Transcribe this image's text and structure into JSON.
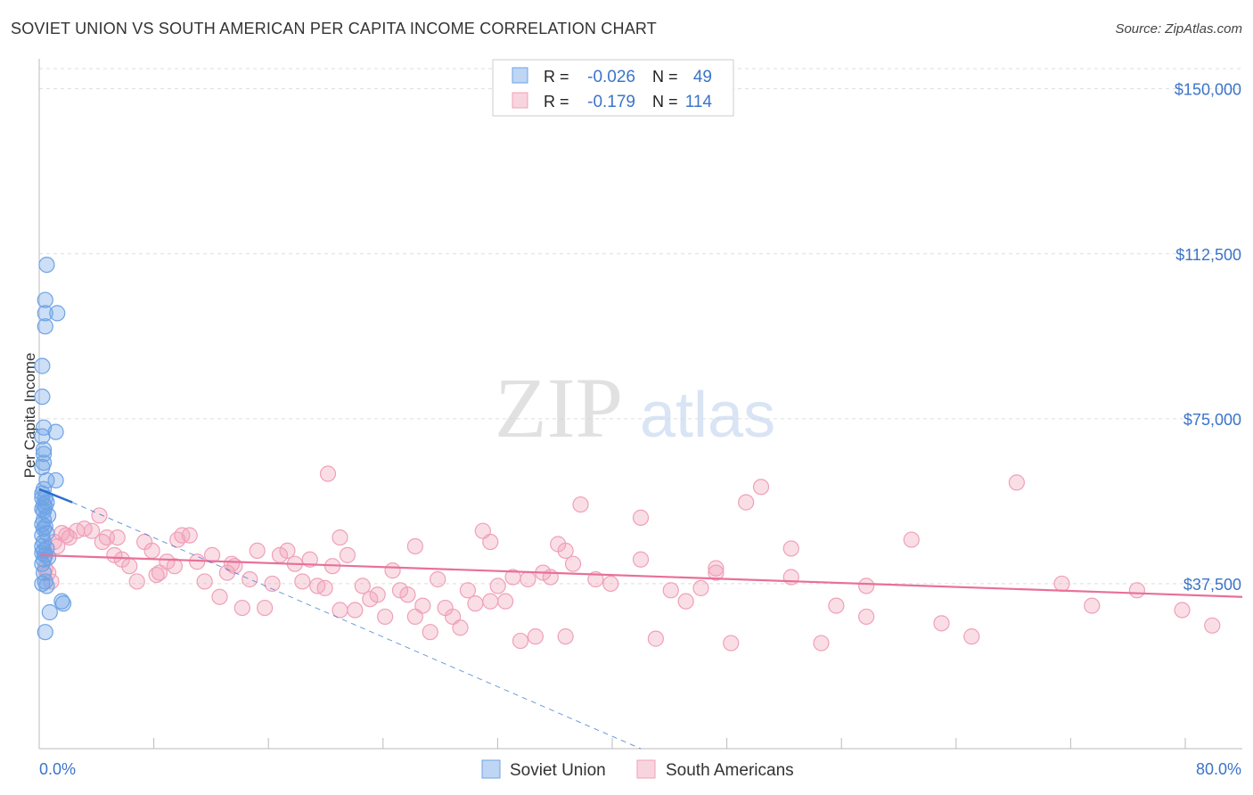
{
  "chart_data": {
    "type": "scatter",
    "title": "SOVIET UNION VS SOUTH AMERICAN PER CAPITA INCOME CORRELATION CHART",
    "source": "Source: ZipAtlas.com",
    "ylabel": "Per Capita Income",
    "xlim": [
      0,
      80
    ],
    "ylim": [
      0,
      155000
    ],
    "x_tick_labels": [
      "0.0%",
      "80.0%"
    ],
    "y_ticks": [
      37500,
      75000,
      112500,
      150000
    ],
    "y_tick_labels": [
      "$37,500",
      "$75,000",
      "$112,500",
      "$150,000"
    ],
    "watermark": "ZIPatlas",
    "colors": {
      "soviet": "#6ea3e6",
      "south": "#f0a0b8",
      "soviet_line": "#2a6fd0",
      "south_line": "#e8709a",
      "axis_text": "#3b74c9"
    },
    "legend": [
      {
        "r_label": "R =",
        "r_value": "-0.026",
        "n_label": "N =",
        "n_value": "49"
      },
      {
        "r_label": "R =",
        "r_value": "-0.179",
        "n_label": "N =",
        "n_value": "114"
      }
    ],
    "series": [
      {
        "name": "Soviet Union",
        "trend": {
          "x": [
            0.0,
            2.2
          ],
          "y": [
            59000,
            56000
          ]
        },
        "trend_ext": {
          "x": [
            2.2,
            40.0
          ],
          "y": [
            56000,
            0
          ]
        },
        "points": [
          [
            0.5,
            110000
          ],
          [
            0.4,
            102000
          ],
          [
            1.2,
            99000
          ],
          [
            0.4,
            99000
          ],
          [
            0.4,
            96000
          ],
          [
            0.2,
            87000
          ],
          [
            0.2,
            80000
          ],
          [
            0.3,
            73000
          ],
          [
            1.1,
            72000
          ],
          [
            0.2,
            71000
          ],
          [
            0.3,
            68000
          ],
          [
            0.3,
            67000
          ],
          [
            0.3,
            65000
          ],
          [
            0.2,
            64000
          ],
          [
            1.1,
            61000
          ],
          [
            0.5,
            61000
          ],
          [
            0.3,
            59000
          ],
          [
            0.2,
            58000
          ],
          [
            0.4,
            57000
          ],
          [
            0.2,
            57000
          ],
          [
            0.5,
            56000
          ],
          [
            0.3,
            55500
          ],
          [
            0.4,
            55000
          ],
          [
            0.2,
            54500
          ],
          [
            0.3,
            54000
          ],
          [
            0.6,
            53000
          ],
          [
            0.3,
            52000
          ],
          [
            0.2,
            51000
          ],
          [
            0.4,
            50500
          ],
          [
            0.3,
            50000
          ],
          [
            0.5,
            49000
          ],
          [
            0.2,
            48500
          ],
          [
            0.3,
            47000
          ],
          [
            0.2,
            46000
          ],
          [
            0.5,
            45500
          ],
          [
            0.3,
            45000
          ],
          [
            0.2,
            44500
          ],
          [
            0.4,
            44000
          ],
          [
            0.6,
            43500
          ],
          [
            0.3,
            43000
          ],
          [
            0.2,
            42000
          ],
          [
            0.3,
            40000
          ],
          [
            0.4,
            38000
          ],
          [
            0.2,
            37500
          ],
          [
            0.5,
            37000
          ],
          [
            1.5,
            33500
          ],
          [
            1.6,
            33000
          ],
          [
            0.7,
            31000
          ],
          [
            0.4,
            26500
          ]
        ]
      },
      {
        "name": "South Americans",
        "trend": {
          "x": [
            0.0,
            80.0
          ],
          "y": [
            44000,
            34500
          ]
        },
        "points": [
          [
            0.4,
            41000
          ],
          [
            0.6,
            40000
          ],
          [
            0.8,
            38000
          ],
          [
            1.0,
            47000
          ],
          [
            1.2,
            46000
          ],
          [
            1.5,
            49000
          ],
          [
            1.8,
            48500
          ],
          [
            2.0,
            48000
          ],
          [
            2.5,
            49500
          ],
          [
            3.0,
            50000
          ],
          [
            3.5,
            49500
          ],
          [
            4.0,
            53000
          ],
          [
            4.2,
            47000
          ],
          [
            4.5,
            48000
          ],
          [
            5.0,
            44000
          ],
          [
            5.2,
            48000
          ],
          [
            5.5,
            43000
          ],
          [
            6.0,
            41500
          ],
          [
            6.5,
            38000
          ],
          [
            7.0,
            47000
          ],
          [
            7.5,
            45000
          ],
          [
            7.8,
            39500
          ],
          [
            8.0,
            40000
          ],
          [
            8.5,
            42500
          ],
          [
            9.0,
            41500
          ],
          [
            9.2,
            47500
          ],
          [
            9.5,
            48500
          ],
          [
            10.0,
            48500
          ],
          [
            10.5,
            42500
          ],
          [
            11.0,
            38000
          ],
          [
            11.5,
            44000
          ],
          [
            12.0,
            34500
          ],
          [
            12.5,
            40000
          ],
          [
            12.8,
            42000
          ],
          [
            13.0,
            41500
          ],
          [
            13.5,
            32000
          ],
          [
            14.0,
            38500
          ],
          [
            14.5,
            45000
          ],
          [
            15.0,
            32000
          ],
          [
            15.5,
            37500
          ],
          [
            16.0,
            44000
          ],
          [
            16.5,
            45000
          ],
          [
            17.0,
            42000
          ],
          [
            17.5,
            38000
          ],
          [
            18.0,
            43000
          ],
          [
            18.5,
            37000
          ],
          [
            19.0,
            36500
          ],
          [
            19.2,
            62500
          ],
          [
            19.5,
            41500
          ],
          [
            20.0,
            31500
          ],
          [
            20.5,
            44000
          ],
          [
            21.0,
            31500
          ],
          [
            21.5,
            37000
          ],
          [
            22.0,
            34000
          ],
          [
            22.5,
            35000
          ],
          [
            23.0,
            30000
          ],
          [
            23.5,
            40500
          ],
          [
            24.0,
            36000
          ],
          [
            24.5,
            35000
          ],
          [
            25.0,
            30000
          ],
          [
            25.5,
            32500
          ],
          [
            26.0,
            26500
          ],
          [
            26.5,
            38500
          ],
          [
            27.0,
            32000
          ],
          [
            27.5,
            30000
          ],
          [
            28.0,
            27500
          ],
          [
            28.5,
            36000
          ],
          [
            29.0,
            33000
          ],
          [
            29.5,
            49500
          ],
          [
            30.0,
            33500
          ],
          [
            30.5,
            37000
          ],
          [
            31.0,
            33500
          ],
          [
            31.5,
            39000
          ],
          [
            32.0,
            24500
          ],
          [
            32.5,
            38500
          ],
          [
            33.0,
            25500
          ],
          [
            33.5,
            40000
          ],
          [
            34.0,
            39000
          ],
          [
            34.5,
            46500
          ],
          [
            35.0,
            25500
          ],
          [
            35.5,
            42000
          ],
          [
            36.0,
            55500
          ],
          [
            37.0,
            38500
          ],
          [
            38.0,
            37500
          ],
          [
            40.0,
            52500
          ],
          [
            41.0,
            25000
          ],
          [
            42.0,
            36000
          ],
          [
            43.0,
            33500
          ],
          [
            44.0,
            36500
          ],
          [
            45.0,
            40000
          ],
          [
            46.0,
            24000
          ],
          [
            47.0,
            56000
          ],
          [
            48.0,
            59500
          ],
          [
            50.0,
            45500
          ],
          [
            52.0,
            24000
          ],
          [
            53.0,
            32500
          ],
          [
            55.0,
            30000
          ],
          [
            58.0,
            47500
          ],
          [
            60.0,
            28500
          ],
          [
            62.0,
            25500
          ],
          [
            65.0,
            60500
          ],
          [
            68.0,
            37500
          ],
          [
            70.0,
            32500
          ],
          [
            73.0,
            36000
          ],
          [
            76.0,
            31500
          ],
          [
            78.0,
            28000
          ],
          [
            20.0,
            48000
          ],
          [
            25.0,
            46000
          ],
          [
            30.0,
            47000
          ],
          [
            35.0,
            45000
          ],
          [
            40.0,
            43000
          ],
          [
            45.0,
            41000
          ],
          [
            50.0,
            39000
          ],
          [
            55.0,
            37000
          ]
        ]
      }
    ]
  }
}
